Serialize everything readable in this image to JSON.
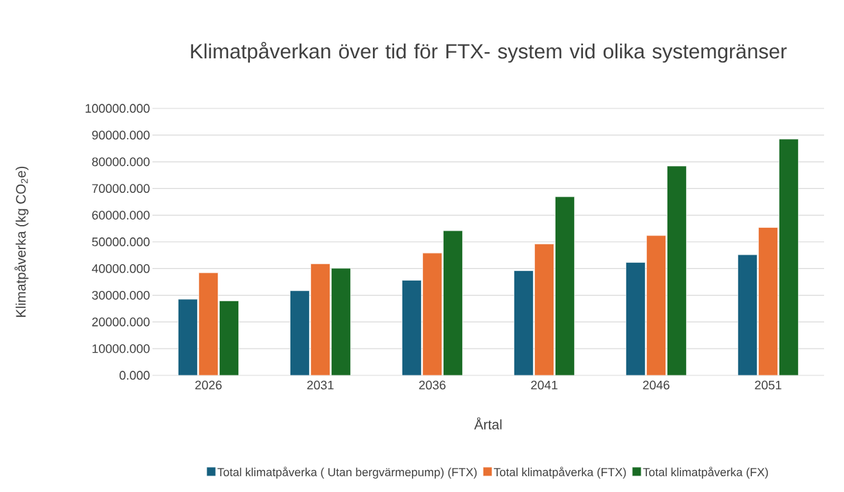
{
  "chart_data": {
    "type": "bar",
    "title": "Klimatpåverkan över tid för FTX- system vid olika systemgränser",
    "xlabel": "Årtal",
    "ylabel": "Klimatpåverka (kg CO$_{2}$e)",
    "categories": [
      "2026",
      "2031",
      "2036",
      "2041",
      "2046",
      "2051"
    ],
    "series": [
      {
        "name": "Total klimatpåverka ( Utan bergvärmepump) (FTX)",
        "color": "#16607f",
        "values": [
          28500,
          31700,
          35600,
          39200,
          42300,
          45200
        ]
      },
      {
        "name": "Total klimatpåverka (FTX)",
        "color": "#e97132",
        "values": [
          38400,
          41800,
          45800,
          49200,
          52400,
          55400
        ]
      },
      {
        "name": "Total klimatpåverka (FX)",
        "color": "#196b24",
        "values": [
          27900,
          40100,
          54200,
          66900,
          78400,
          88500
        ]
      }
    ],
    "ylim": [
      0,
      100000
    ],
    "yticks": [
      {
        "value": 0,
        "label": "0.000"
      },
      {
        "value": 10000,
        "label": "10000.000"
      },
      {
        "value": 20000,
        "label": "20000.000"
      },
      {
        "value": 30000,
        "label": "30000.000"
      },
      {
        "value": 40000,
        "label": "40000.000"
      },
      {
        "value": 50000,
        "label": "50000.000"
      },
      {
        "value": 60000,
        "label": "60000.000"
      },
      {
        "value": 70000,
        "label": "70000.000"
      },
      {
        "value": 80000,
        "label": "80000.000"
      },
      {
        "value": 90000,
        "label": "90000.000"
      },
      {
        "value": 100000,
        "label": "100000.000"
      }
    ],
    "grid": "y",
    "legend": "bottom"
  }
}
